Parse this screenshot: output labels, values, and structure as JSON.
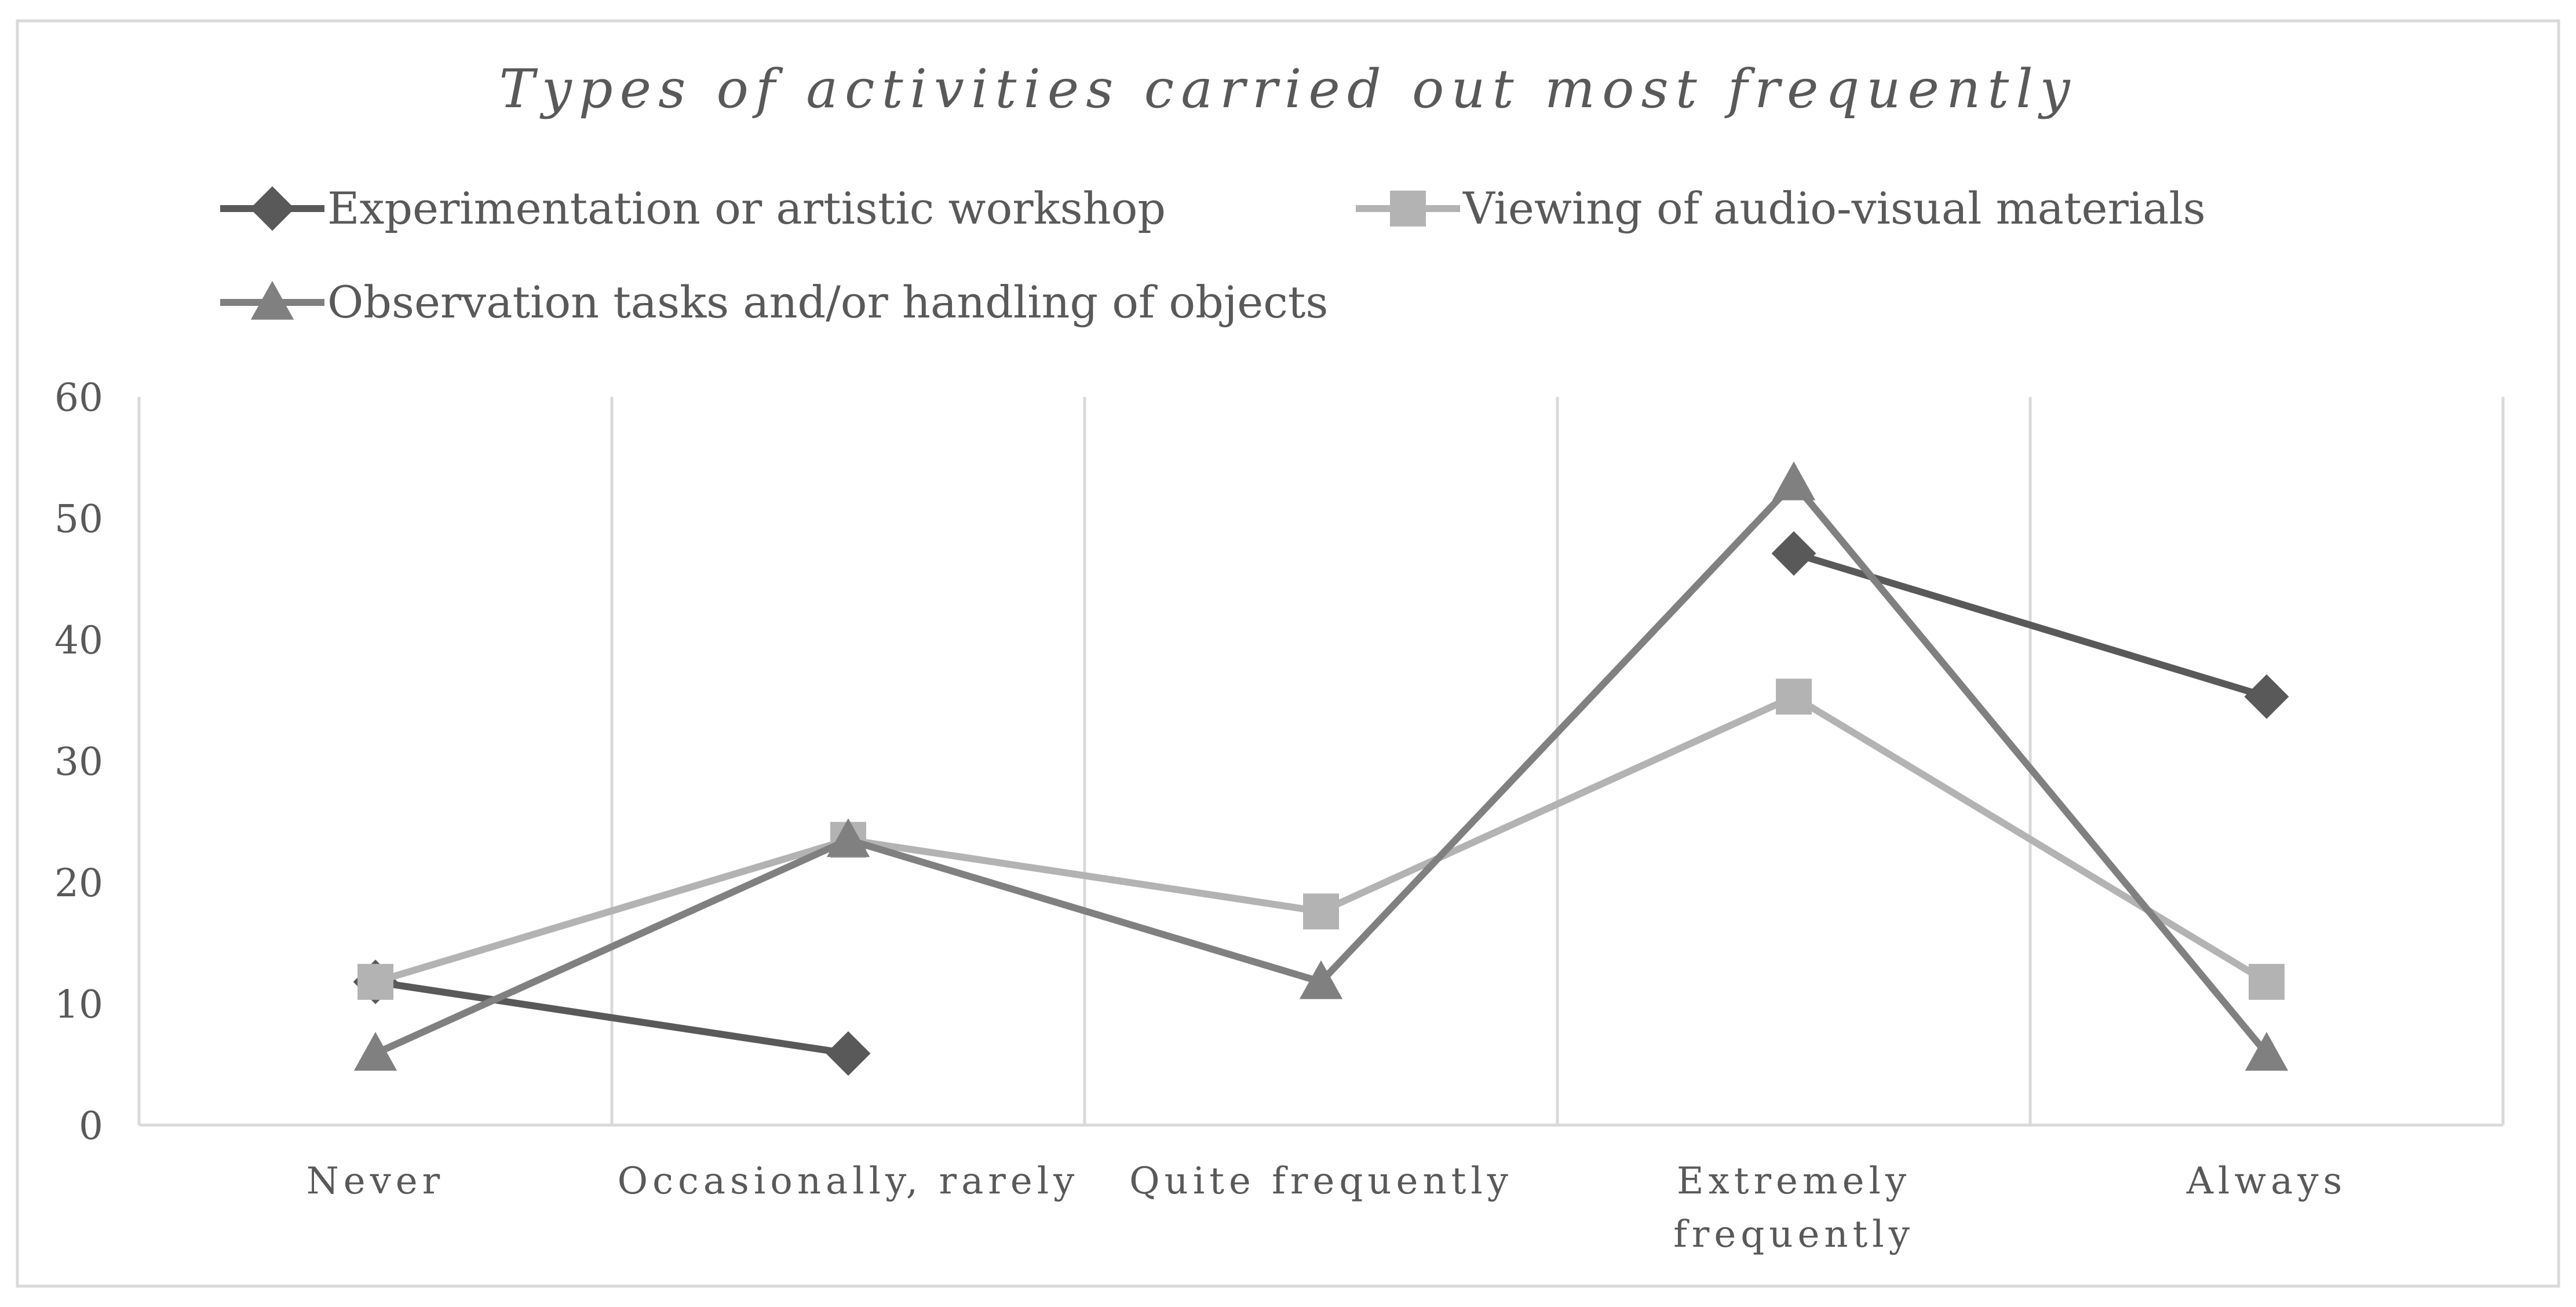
{
  "chart_data": {
    "type": "line",
    "title": "Types of activities carried out most frequently",
    "categories": [
      "Never",
      "Occasionally, rarely",
      "Quite frequently",
      "Extremely\nfrequently",
      "Always"
    ],
    "ylim": [
      0,
      60
    ],
    "yticks": [
      0,
      10,
      20,
      30,
      40,
      50,
      60
    ],
    "grid": "vertical",
    "legend_position": "top",
    "series": [
      {
        "name": "Experimentation or artistic workshop",
        "marker": "diamond",
        "color": "#595959",
        "values": [
          11.8,
          5.9,
          null,
          47.1,
          35.3
        ]
      },
      {
        "name": "Viewing of audio-visual materials",
        "marker": "square",
        "color": "#b3b3b3",
        "values": [
          11.8,
          23.5,
          17.6,
          35.3,
          11.8
        ]
      },
      {
        "name": "Observation tasks and/or handling of objects",
        "marker": "triangle",
        "color": "#808080",
        "values": [
          5.9,
          23.5,
          11.8,
          52.9,
          5.9
        ]
      }
    ]
  }
}
